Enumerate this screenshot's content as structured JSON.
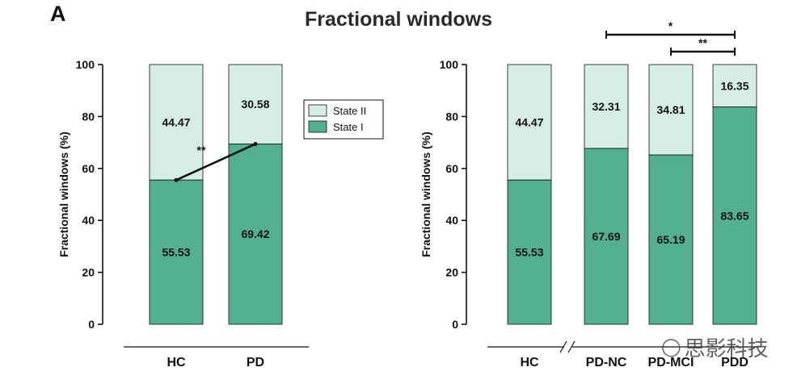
{
  "panel_label": "A",
  "figure_title": "Fractional windows",
  "watermark": {
    "text": "思影科技",
    "icon": "wechat-bubble-icon"
  },
  "colors": {
    "state_i": "#52b08e",
    "state_ii": "#d6ede3",
    "edge": "#111111"
  },
  "legend": {
    "items": [
      "State II",
      "State I"
    ]
  },
  "chart_data": [
    {
      "type": "bar",
      "stacked": true,
      "categories": [
        "HC",
        "PD"
      ],
      "series": [
        {
          "name": "State I",
          "values": [
            55.53,
            69.42
          ]
        },
        {
          "name": "State II",
          "values": [
            44.47,
            30.58
          ]
        }
      ],
      "data_labels": {
        "State I": [
          "55.53",
          "69.42"
        ],
        "State II": [
          "44.47",
          "30.58"
        ]
      },
      "ylabel": "Fractional windows (%)",
      "ylim": [
        0,
        100
      ],
      "yticks": [
        "0",
        "20",
        "40",
        "60",
        "80",
        "100"
      ],
      "connector": {
        "from": "HC",
        "to": "PD",
        "label": "**"
      },
      "legend_position": "right"
    },
    {
      "type": "bar",
      "stacked": true,
      "categories": [
        "HC",
        "PD-NC",
        "PD-MCI",
        "PDD"
      ],
      "series": [
        {
          "name": "State I",
          "values": [
            55.53,
            67.69,
            65.19,
            83.65
          ]
        },
        {
          "name": "State II",
          "values": [
            44.47,
            32.31,
            34.81,
            16.35
          ]
        }
      ],
      "data_labels": {
        "State I": [
          "55.53",
          "67.69",
          "65.19",
          "83.65"
        ],
        "State II": [
          "44.47",
          "32.31",
          "34.81",
          "16.35"
        ]
      },
      "ylabel": "Fractional windows (%)",
      "ylim": [
        0,
        100
      ],
      "yticks": [
        "0",
        "20",
        "40",
        "60",
        "80",
        "100"
      ],
      "significance": [
        {
          "from": "PD-NC",
          "to": "PDD",
          "label": "*"
        },
        {
          "from": "PD-MCI",
          "to": "PDD",
          "label": "**"
        }
      ],
      "axis_break_after": "HC"
    }
  ]
}
